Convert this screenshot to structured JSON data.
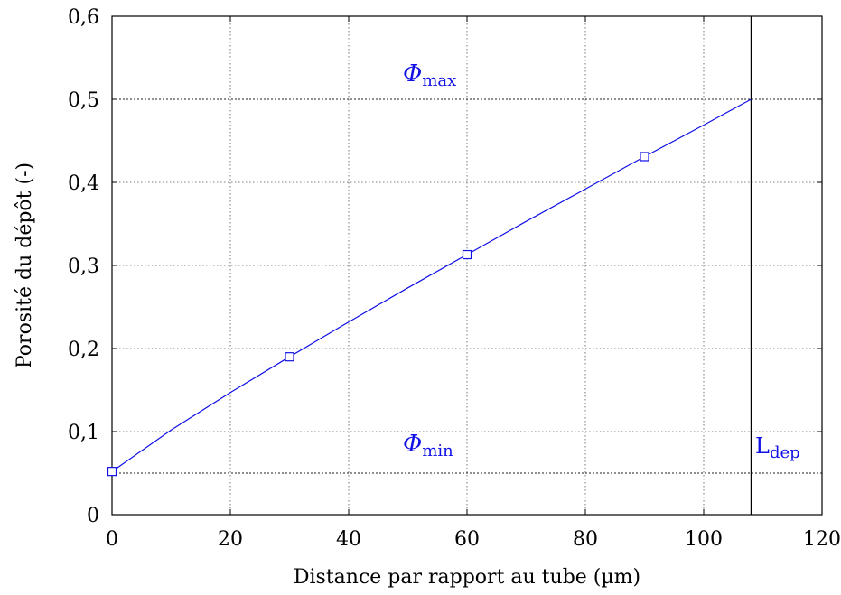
{
  "chart_data": {
    "type": "line",
    "xlabel": "Distance par rapport au tube (µm)",
    "ylabel": "Porosité du dépôt (-)",
    "xlim": [
      0,
      120
    ],
    "ylim": [
      0,
      0.6
    ],
    "x_ticks": [
      0,
      20,
      40,
      60,
      80,
      100,
      120
    ],
    "y_ticks": [
      0,
      0.1,
      0.2,
      0.3,
      0.4,
      0.5,
      0.6
    ],
    "x_tick_labels": [
      "0",
      "20",
      "40",
      "60",
      "80",
      "100",
      "120"
    ],
    "y_tick_labels": [
      "0",
      "0,1",
      "0,2",
      "0,3",
      "0,4",
      "0,5",
      "0,6"
    ],
    "grid": true,
    "series": [
      {
        "name": "",
        "color": "#1010e6",
        "markers": "open-square",
        "x": [
          0,
          30,
          60,
          90
        ],
        "y": [
          0.052,
          0.19,
          0.313,
          0.431
        ]
      }
    ],
    "curve": {
      "x": [
        0,
        10,
        20,
        30,
        40,
        50,
        60,
        70,
        80,
        90,
        100,
        108
      ],
      "y": [
        0.052,
        0.102,
        0.147,
        0.19,
        0.232,
        0.273,
        0.313,
        0.353,
        0.392,
        0.431,
        0.469,
        0.5
      ]
    },
    "reference_lines": {
      "phi_max": 0.5,
      "phi_min": 0.05,
      "l_dep": 108
    },
    "annotations": {
      "phi_max": {
        "symbol": "Φ",
        "subscript": "max"
      },
      "phi_min": {
        "symbol": "Φ",
        "subscript": "min"
      },
      "l_dep": {
        "symbol": "L",
        "subscript": "dep"
      }
    }
  }
}
